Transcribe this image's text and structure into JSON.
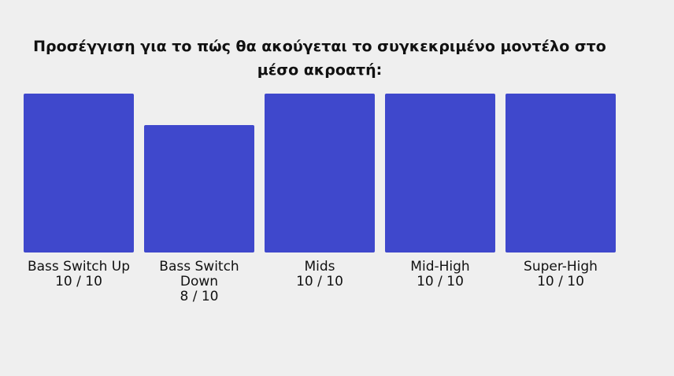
{
  "chart_data": {
    "type": "bar",
    "title": "Προσέγγιση για το πώς θα ακούγεται το συγκεκριμένο μοντέλο στο μέσο ακροατή:",
    "categories": [
      "Bass Switch Up",
      "Bass Switch Down",
      "Mids",
      "Mid-High",
      "Super-High"
    ],
    "values": [
      10,
      8,
      10,
      10,
      10
    ],
    "value_labels": [
      "10 / 10",
      "8 / 10",
      "10 / 10",
      "10 / 10",
      "10 / 10"
    ],
    "ylim": [
      0,
      10
    ],
    "grid": false,
    "legend": "none",
    "bar_color": "#3f48cc"
  }
}
